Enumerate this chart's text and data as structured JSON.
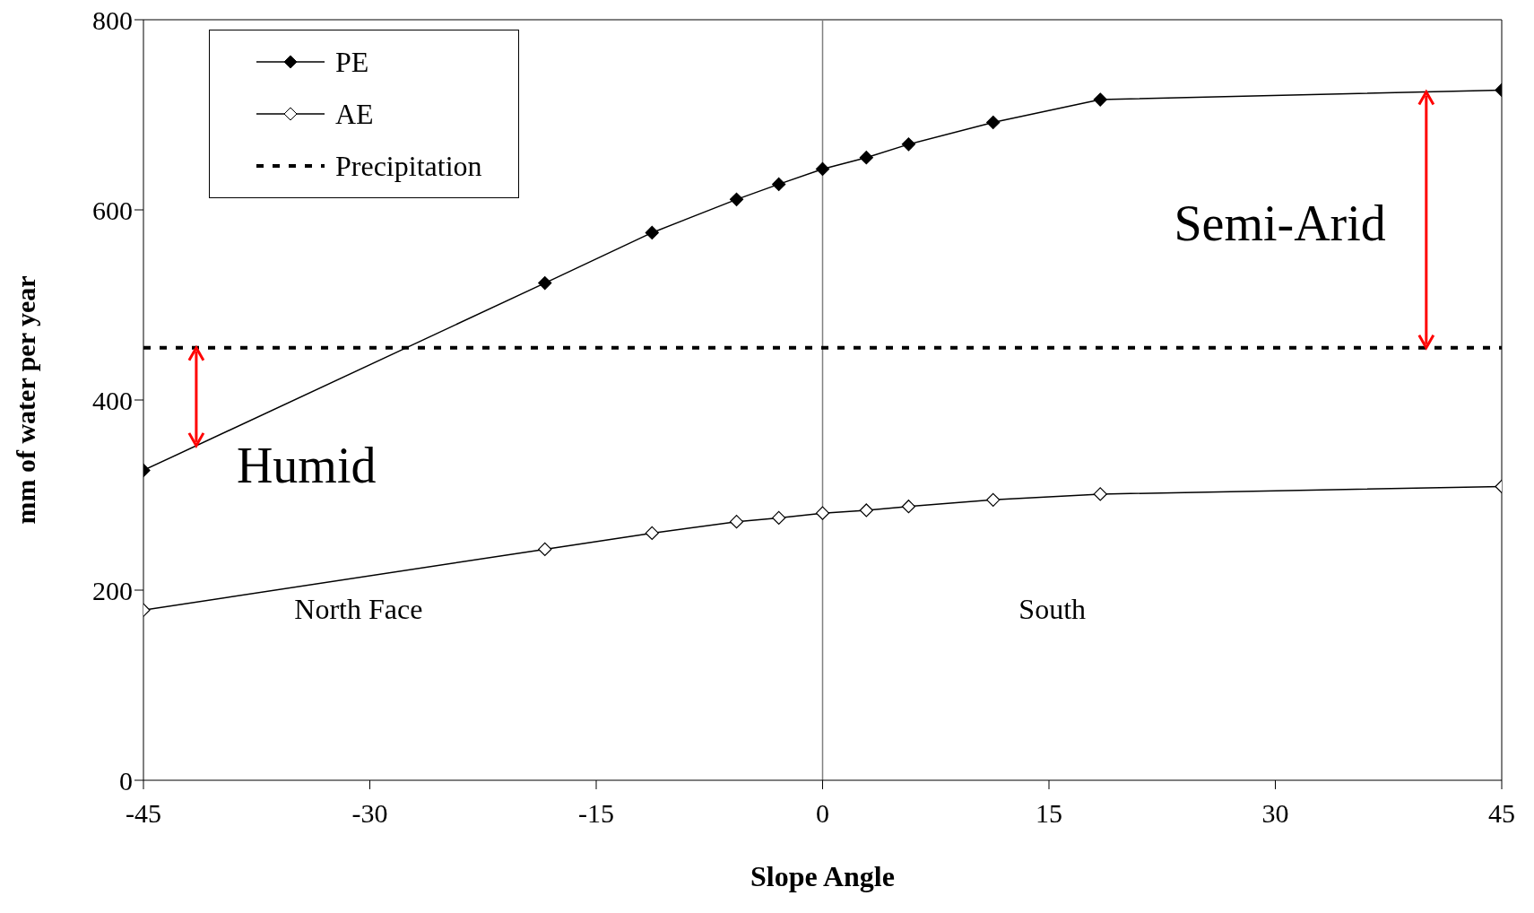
{
  "chart_data": {
    "type": "line",
    "xlabel": "Slope Angle",
    "ylabel": "mm of water per year",
    "x": [
      -45,
      -18.4,
      -11.3,
      -5.7,
      -2.9,
      0,
      2.9,
      5.7,
      11.3,
      18.4,
      45
    ],
    "series": [
      {
        "name": "PE",
        "color": "#000000",
        "marker": "diamond",
        "values": [
          326,
          523,
          576,
          611,
          627,
          643,
          655,
          669,
          692,
          716,
          726
        ]
      },
      {
        "name": "AE",
        "color": "#000000",
        "marker": "diamond",
        "values": [
          179,
          243,
          260,
          272,
          276,
          281,
          284,
          288,
          295,
          301,
          309
        ]
      },
      {
        "name": "Precipitation",
        "color": "#000000",
        "marker": "none",
        "line_style": "dashed",
        "x": [
          -45,
          45
        ],
        "values": [
          455,
          455
        ]
      }
    ],
    "xlim": [
      -45,
      45
    ],
    "xticks": [
      -45,
      -30,
      -15,
      0,
      15,
      30,
      45
    ],
    "ylim": [
      0,
      800
    ],
    "yticks": [
      0,
      200,
      400,
      600,
      800
    ],
    "ref_lines": [
      {
        "axis": "x",
        "value": 0,
        "color": "#808080"
      }
    ],
    "annotations": [
      {
        "text": "Humid",
        "x": -41.5,
        "y": 455
      },
      {
        "text": "Semi-Arid",
        "x": 40,
        "y": 455
      },
      "North Face",
      "South"
    ],
    "legend": "top left"
  }
}
